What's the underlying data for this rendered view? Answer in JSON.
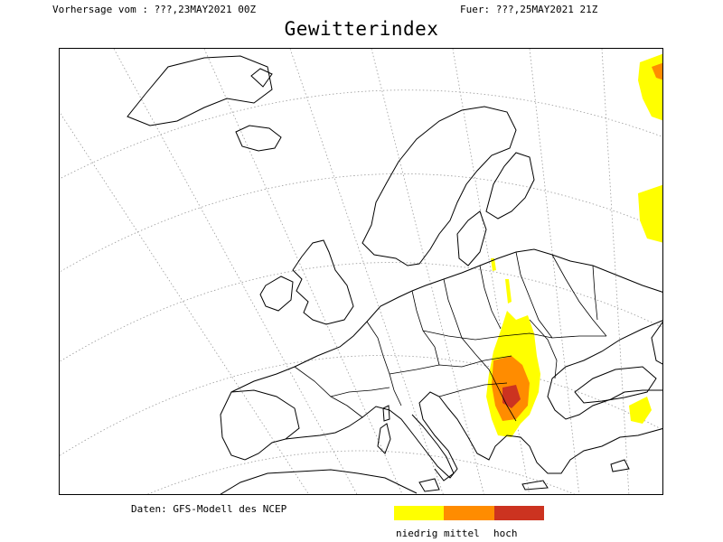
{
  "header": {
    "forecast_from": "Vorhersage vom : ???,23MAY2021 00Z",
    "valid_for": "Fuer: ???,25MAY2021 21Z"
  },
  "title": "Gewitterindex",
  "source": "Daten: GFS-Modell des NCEP",
  "legend": {
    "items": [
      {
        "label": "niedrig",
        "color": "#ffff00"
      },
      {
        "label": "mittel",
        "color": "#ff8c00"
      },
      {
        "label": "hoch",
        "color": "#cc3320"
      }
    ]
  },
  "map": {
    "region": "Europe",
    "graticule": "dotted",
    "coastline_color": "#000000",
    "background": "#ffffff"
  }
}
